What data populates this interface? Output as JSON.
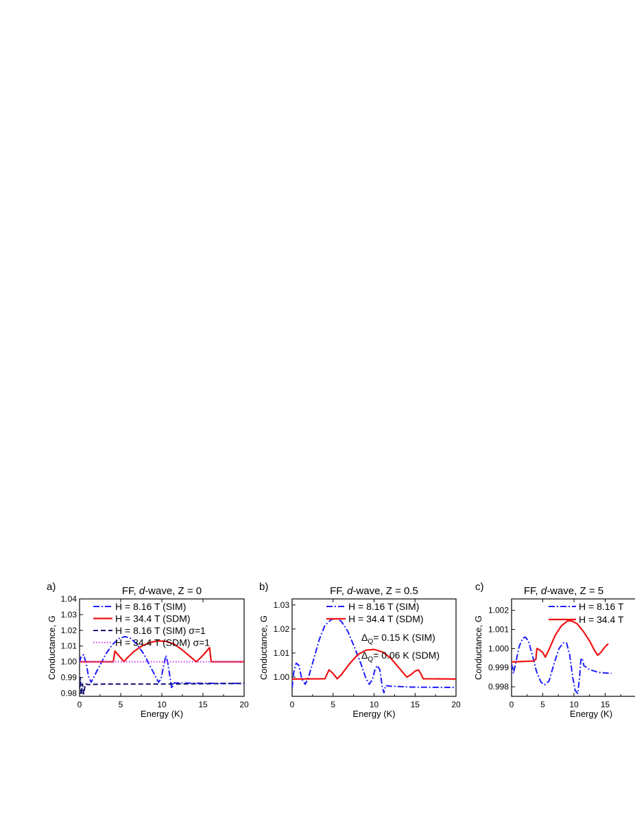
{
  "chart_data": [
    {
      "type": "line",
      "panel_label": "a)",
      "title": "FF, d-wave, Z = 0",
      "title_parts": [
        "FF, ",
        "d",
        "-wave, Z = 0"
      ],
      "xlabel": "Energy (K)",
      "ylabel": "Conductance, G",
      "xlim": [
        0,
        20
      ],
      "ylim": [
        0.978,
        1.04
      ],
      "xticks": [
        0,
        5,
        10,
        15,
        20
      ],
      "yticks": [
        0.98,
        0.99,
        1.0,
        1.01,
        1.02,
        1.03,
        1.04
      ],
      "ytick_labels": [
        "0.98",
        "0.99",
        "1.00",
        "1.01",
        "1.02",
        "1.03",
        "1.04"
      ],
      "legend_position": "top-right",
      "annotations": [],
      "series": [
        {
          "name": "H = 8.16 T (SIM)",
          "color": "#1a1aff",
          "dash": "dashdot",
          "points": [
            [
              0,
              0.9995
            ],
            [
              0.2,
              1.0035
            ],
            [
              0.5,
              1.0045
            ],
            [
              0.8,
              0.999
            ],
            [
              1.1,
              0.9905
            ],
            [
              1.4,
              0.987
            ],
            [
              1.8,
              0.991
            ],
            [
              2.5,
              0.998
            ],
            [
              3.2,
              1.005
            ],
            [
              4.0,
              1.011
            ],
            [
              4.8,
              1.0148
            ],
            [
              5.5,
              1.016
            ],
            [
              6.2,
              1.015
            ],
            [
              7.0,
              1.011
            ],
            [
              7.8,
              1.005
            ],
            [
              8.6,
              0.997
            ],
            [
              9.2,
              0.991
            ],
            [
              9.6,
              0.987
            ],
            [
              9.9,
              0.989
            ],
            [
              10.2,
              0.997
            ],
            [
              10.5,
              1.004
            ],
            [
              10.7,
              1.0
            ],
            [
              11.0,
              0.99
            ],
            [
              11.2,
              0.983
            ],
            [
              11.5,
              0.9865
            ],
            [
              12.5,
              0.9865
            ],
            [
              15,
              0.9863
            ],
            [
              20,
              0.9862
            ]
          ]
        },
        {
          "name": "H = 34.4 T (SDM)",
          "color": "#ee1111",
          "dash": "solid",
          "points": [
            [
              0,
              1.0
            ],
            [
              4.1,
              1.0
            ],
            [
              4.3,
              1.0068
            ],
            [
              4.5,
              1.0055
            ],
            [
              5.0,
              1.0025
            ],
            [
              5.4,
              1.0
            ],
            [
              5.8,
              1.0025
            ],
            [
              6.6,
              1.0065
            ],
            [
              7.5,
              1.0098
            ],
            [
              8.5,
              1.0122
            ],
            [
              9.5,
              1.0133
            ],
            [
              10.5,
              1.013
            ],
            [
              11.5,
              1.0112
            ],
            [
              12.5,
              1.0075
            ],
            [
              13.5,
              1.003
            ],
            [
              14.2,
              1.0
            ],
            [
              14.8,
              1.003
            ],
            [
              15.4,
              1.0065
            ],
            [
              15.8,
              1.009
            ],
            [
              16.0,
              1.0
            ],
            [
              20,
              1.0
            ]
          ]
        },
        {
          "name": "H = 8.16 T (SIM) σ=1",
          "color": "#101070",
          "dash": "dashed",
          "points": [
            [
              0,
              0.983
            ],
            [
              0.1,
              0.99
            ],
            [
              0.2,
              0.979
            ],
            [
              0.35,
              0.986
            ],
            [
              0.5,
              0.9795
            ],
            [
              0.7,
              0.986
            ],
            [
              1.0,
              0.9855
            ],
            [
              3,
              0.9858
            ],
            [
              10,
              0.9858
            ],
            [
              20,
              0.9862
            ]
          ]
        },
        {
          "name": "H = 34.4 T (SDM) σ=1",
          "color": "#cc33ee",
          "dash": "dotted",
          "points": [
            [
              0,
              1.0
            ],
            [
              20,
              1.0
            ]
          ]
        }
      ]
    },
    {
      "type": "line",
      "panel_label": "b)",
      "title": "FF, d-wave, Z = 0.5",
      "title_parts": [
        "FF, ",
        "d",
        "-wave, Z = 0.5"
      ],
      "xlabel": "Energy (K)",
      "ylabel": "Conductance, G",
      "xlim": [
        0,
        20
      ],
      "ylim": [
        0.992,
        1.0325
      ],
      "xticks": [
        0,
        5,
        10,
        15,
        20
      ],
      "yticks": [
        1.0,
        1.01,
        1.02,
        1.03
      ],
      "ytick_labels": [
        "1.00",
        "1.01",
        "1.02",
        "1.03"
      ],
      "legend_position": "top-right",
      "annotations": [
        {
          "symbol": "Δ",
          "sub": "Q",
          "text": "= 0.15 K (SIM)"
        },
        {
          "symbol": "Δ",
          "sub": "Q",
          "text": "= 0.06 K (SDM)"
        }
      ],
      "series": [
        {
          "name": "H = 8.16 T (SIM)",
          "color": "#1a1aff",
          "dash": "dashdot",
          "points": [
            [
              0,
              0.9955
            ],
            [
              0.2,
              1.002
            ],
            [
              0.5,
              1.0058
            ],
            [
              0.8,
              1.005
            ],
            [
              1.2,
              0.999
            ],
            [
              1.6,
              0.997
            ],
            [
              2.0,
              1.0
            ],
            [
              2.6,
              1.007
            ],
            [
              3.3,
              1.0155
            ],
            [
              4.0,
              1.0215
            ],
            [
              4.8,
              1.024
            ],
            [
              5.4,
              1.0243
            ],
            [
              6.0,
              1.0232
            ],
            [
              6.8,
              1.019
            ],
            [
              7.6,
              1.0125
            ],
            [
              8.4,
              1.0055
            ],
            [
              9.0,
              0.9995
            ],
            [
              9.4,
              0.997
            ],
            [
              9.8,
              0.999
            ],
            [
              10.1,
              1.003
            ],
            [
              10.4,
              1.0048
            ],
            [
              10.7,
              1.003
            ],
            [
              11.0,
              0.996
            ],
            [
              11.2,
              0.9935
            ],
            [
              11.4,
              0.9965
            ],
            [
              12.0,
              0.9962
            ],
            [
              15,
              0.9958
            ],
            [
              20,
              0.9957
            ]
          ]
        },
        {
          "name": "H = 34.4 T (SDM)",
          "color": "#ee1111",
          "dash": "solid",
          "points": [
            [
              0,
              0.9992
            ],
            [
              4.0,
              0.9993
            ],
            [
              4.5,
              1.003
            ],
            [
              5.0,
              1.0015
            ],
            [
              5.5,
              0.9993
            ],
            [
              6.0,
              1.001
            ],
            [
              7.0,
              1.0055
            ],
            [
              8.0,
              1.0093
            ],
            [
              9.0,
              1.0112
            ],
            [
              10.0,
              1.0115
            ],
            [
              11.0,
              1.0105
            ],
            [
              12.0,
              1.008
            ],
            [
              13.0,
              1.004
            ],
            [
              14.0,
              1.0
            ],
            [
              14.5,
              1.001
            ],
            [
              15.0,
              1.0025
            ],
            [
              15.4,
              1.003
            ],
            [
              15.7,
              1.0015
            ],
            [
              16.0,
              0.9993
            ],
            [
              20,
              0.9992
            ]
          ]
        }
      ]
    },
    {
      "type": "line",
      "panel_label": "c)",
      "title": "FF, d-wave, Z = 5",
      "title_parts": [
        "FF, ",
        "d",
        "-wave, Z = 5"
      ],
      "xlabel": "Energy (K)",
      "ylabel": "Conductance, G",
      "xlim": [
        0,
        20
      ],
      "ylim": [
        0.9975,
        1.0026
      ],
      "xticks": [
        0,
        5,
        10,
        15
      ],
      "yticks": [
        0.998,
        0.999,
        1.0,
        1.001,
        1.002
      ],
      "ytick_labels": [
        "0.998",
        "0.999",
        "1.000",
        "1.001",
        "1.002"
      ],
      "legend_position": "top-right",
      "annotations": [],
      "series": [
        {
          "name": "H = 8.16 T",
          "color": "#1a1aff",
          "dash": "dashdot",
          "points": [
            [
              0,
              0.9992
            ],
            [
              0.3,
              0.9987
            ],
            [
              0.7,
              0.9993
            ],
            [
              1.2,
              1.0001
            ],
            [
              1.8,
              1.00055
            ],
            [
              2.2,
              1.0006
            ],
            [
              2.7,
              1.0004
            ],
            [
              3.3,
              0.9997
            ],
            [
              4.0,
              0.9988
            ],
            [
              4.7,
              0.99825
            ],
            [
              5.3,
              0.9981
            ],
            [
              6.0,
              0.9983
            ],
            [
              6.8,
              0.9992
            ],
            [
              7.6,
              1.0
            ],
            [
              8.3,
              1.0003
            ],
            [
              8.8,
              1.0003
            ],
            [
              9.3,
              0.9997
            ],
            [
              9.8,
              0.9985
            ],
            [
              10.2,
              0.9978
            ],
            [
              10.6,
              0.99765
            ],
            [
              10.9,
              0.9985
            ],
            [
              11.1,
              0.9994
            ],
            [
              11.3,
              0.9995
            ],
            [
              11.6,
              0.9991
            ],
            [
              12.5,
              0.9989
            ],
            [
              14.0,
              0.99875
            ],
            [
              16,
              0.9987
            ]
          ]
        },
        {
          "name": "H = 34.4 T",
          "color": "#ee1111",
          "dash": "solid",
          "points": [
            [
              0,
              0.9993
            ],
            [
              3.5,
              0.99935
            ],
            [
              3.9,
              0.99945
            ],
            [
              4.05,
              1.0
            ],
            [
              4.4,
              0.99995
            ],
            [
              5.0,
              0.9998
            ],
            [
              5.4,
              0.99955
            ],
            [
              6.0,
              0.99995
            ],
            [
              7.0,
              1.0007
            ],
            [
              8.0,
              1.0012
            ],
            [
              9.0,
              1.00145
            ],
            [
              9.6,
              1.00145
            ],
            [
              10.5,
              1.0013
            ],
            [
              11.5,
              1.0009
            ],
            [
              12.5,
              1.0004
            ],
            [
              13.3,
              0.9999
            ],
            [
              13.8,
              0.99965
            ],
            [
              14.3,
              0.9998
            ],
            [
              15.0,
              1.0001
            ],
            [
              15.5,
              1.00025
            ]
          ]
        }
      ]
    }
  ]
}
